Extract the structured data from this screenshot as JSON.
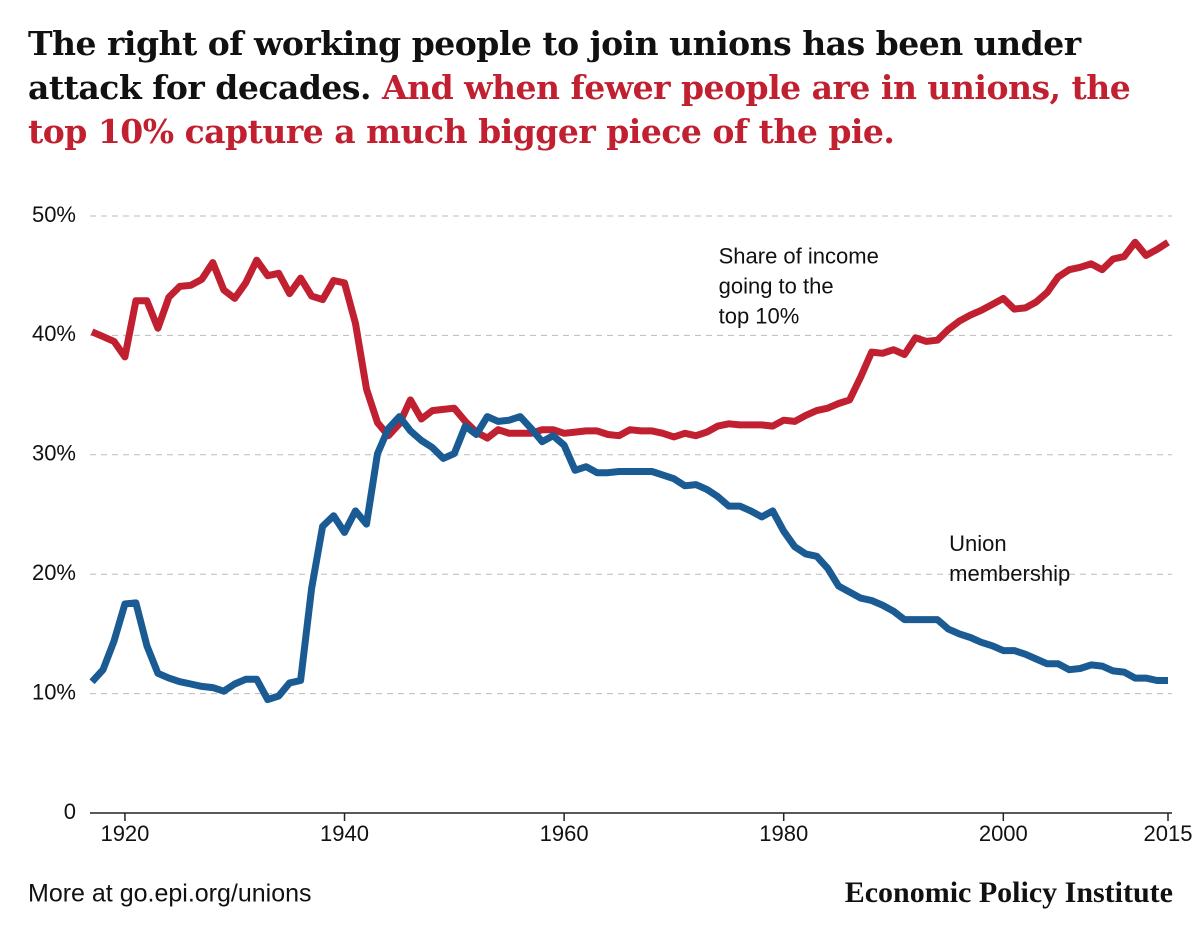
{
  "chart_data": {
    "type": "line",
    "title": "The right of working people to join unions has been under attack for decades.",
    "title_highlight": "And when fewer people are in unions, the top 10% capture a much bigger piece of the pie.",
    "x": [
      1917,
      1918,
      1919,
      1920,
      1921,
      1922,
      1923,
      1924,
      1925,
      1926,
      1927,
      1928,
      1929,
      1930,
      1931,
      1932,
      1933,
      1934,
      1935,
      1936,
      1937,
      1938,
      1939,
      1940,
      1941,
      1942,
      1943,
      1944,
      1945,
      1946,
      1947,
      1948,
      1949,
      1950,
      1951,
      1952,
      1953,
      1954,
      1955,
      1956,
      1957,
      1958,
      1959,
      1960,
      1961,
      1962,
      1963,
      1964,
      1965,
      1966,
      1967,
      1968,
      1969,
      1970,
      1971,
      1972,
      1973,
      1974,
      1975,
      1976,
      1977,
      1978,
      1979,
      1980,
      1981,
      1982,
      1983,
      1984,
      1985,
      1986,
      1987,
      1988,
      1989,
      1990,
      1991,
      1992,
      1993,
      1994,
      1995,
      1996,
      1997,
      1998,
      1999,
      2000,
      2001,
      2002,
      2003,
      2004,
      2005,
      2006,
      2007,
      2008,
      2009,
      2010,
      2011,
      2012,
      2013,
      2014,
      2015
    ],
    "series": [
      {
        "name": "Share of income going to the top 10%",
        "color": "#c0202f",
        "values": [
          40.3,
          39.9,
          39.5,
          38.2,
          42.9,
          42.9,
          40.6,
          43.2,
          44.1,
          44.2,
          44.7,
          46.1,
          43.8,
          43.1,
          44.4,
          46.3,
          45.0,
          45.2,
          43.5,
          44.8,
          43.3,
          43.0,
          44.6,
          44.4,
          41.0,
          35.5,
          32.7,
          31.6,
          32.6,
          34.6,
          33.0,
          33.7,
          33.8,
          33.9,
          32.8,
          31.9,
          31.4,
          32.1,
          31.8,
          31.8,
          31.8,
          32.1,
          32.1,
          31.8,
          31.9,
          32.0,
          32.0,
          31.7,
          31.6,
          32.1,
          32.0,
          32.0,
          31.8,
          31.5,
          31.8,
          31.6,
          31.9,
          32.4,
          32.6,
          32.5,
          32.5,
          32.5,
          32.4,
          32.9,
          32.8,
          33.3,
          33.7,
          33.9,
          34.3,
          34.6,
          36.5,
          38.6,
          38.5,
          38.8,
          38.4,
          39.8,
          39.5,
          39.6,
          40.5,
          41.2,
          41.7,
          42.1,
          42.6,
          43.1,
          42.2,
          42.3,
          42.8,
          43.6,
          44.9,
          45.5,
          45.7,
          46.0,
          45.5,
          46.4,
          46.6,
          47.8,
          46.7,
          47.2,
          47.8
        ]
      },
      {
        "name": "Union membership",
        "color": "#1a5b94",
        "values": [
          11.0,
          12.0,
          14.4,
          17.5,
          17.6,
          14.0,
          11.7,
          11.3,
          11.0,
          10.8,
          10.6,
          10.5,
          10.2,
          10.8,
          11.2,
          11.2,
          9.5,
          9.8,
          10.9,
          11.1,
          18.8,
          24.0,
          24.9,
          23.5,
          25.3,
          24.2,
          30.1,
          32.2,
          33.2,
          32.0,
          31.2,
          30.6,
          29.7,
          30.1,
          32.4,
          31.7,
          33.2,
          32.8,
          32.9,
          33.2,
          32.2,
          31.1,
          31.6,
          30.8,
          28.7,
          29.0,
          28.5,
          28.5,
          28.6,
          28.6,
          28.6,
          28.6,
          28.3,
          28.0,
          27.4,
          27.5,
          27.1,
          26.5,
          25.7,
          25.7,
          25.3,
          24.8,
          25.3,
          23.6,
          22.3,
          21.7,
          21.5,
          20.5,
          19.0,
          18.5,
          18.0,
          17.8,
          17.4,
          16.9,
          16.2,
          16.2,
          16.2,
          16.2,
          15.4,
          15.0,
          14.7,
          14.3,
          14.0,
          13.6,
          13.6,
          13.3,
          12.9,
          12.5,
          12.5,
          12.0,
          12.1,
          12.4,
          12.3,
          11.9,
          11.8,
          11.3,
          11.3,
          11.1,
          11.1
        ]
      }
    ],
    "annotations": [
      {
        "lines": [
          "Share of income",
          "going to the",
          "top 10%"
        ],
        "x": 1985,
        "y": 44
      },
      {
        "lines": [
          "Union",
          "membership"
        ],
        "x": 2006,
        "y": 19.9
      }
    ],
    "xlim": [
      1917,
      2015
    ],
    "xticks": [
      1920,
      1940,
      1960,
      1980,
      2000,
      2015
    ],
    "ylim": [
      0,
      50
    ],
    "yticks": [
      0,
      {
        "value": 10,
        "label": "10%"
      },
      {
        "value": 20,
        "label": "20%"
      },
      {
        "value": 30,
        "label": "30%"
      },
      {
        "value": 40,
        "label": "40%"
      },
      {
        "value": 50,
        "label": "50%"
      }
    ],
    "grid": true,
    "source_note": "More at go.epi.org/unions",
    "source": "Economic Policy Institute"
  }
}
